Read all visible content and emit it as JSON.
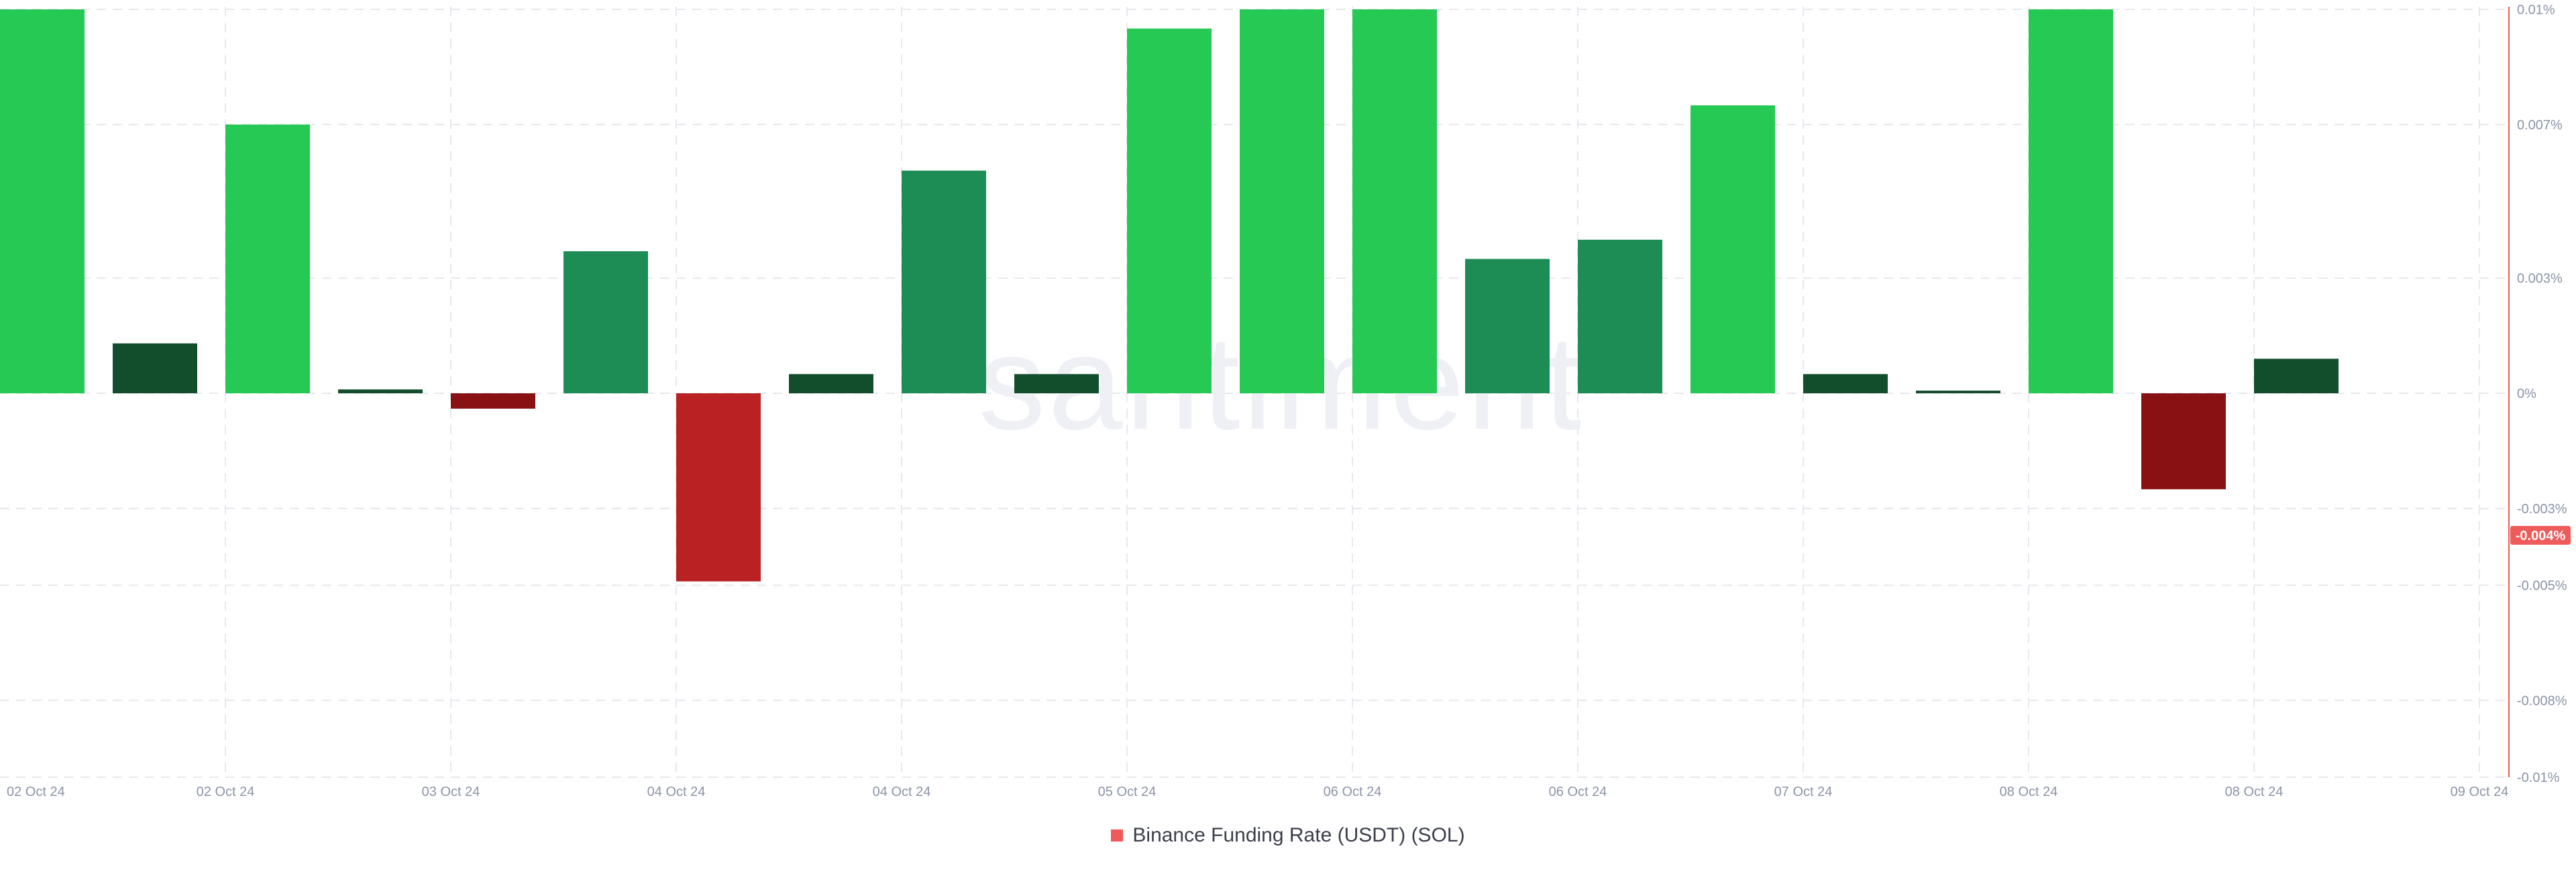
{
  "watermark": "santiment",
  "colors": {
    "bright_green": "#26c954",
    "mid_green": "#1d8c55",
    "dark_green": "#124d2c",
    "bright_red": "#b92123",
    "dark_red": "#8a1113",
    "axis_line": "#ef5a5a",
    "badge": "#ef5a5a",
    "legend_swatch": "#ef5a5a"
  },
  "chart_data": {
    "type": "bar",
    "title": "",
    "xlabel": "",
    "ylabel": "",
    "ylim": [
      -0.01,
      0.01
    ],
    "grid": true,
    "legend_placement": "bottom-center",
    "y_ticks": [
      {
        "value": 0.01,
        "label": "0.01%"
      },
      {
        "value": 0.007,
        "label": "0.007%"
      },
      {
        "value": 0.003,
        "label": "0.003%"
      },
      {
        "value": 0,
        "label": "0%"
      },
      {
        "value": -0.003,
        "label": "-0.003%"
      },
      {
        "value": -0.005,
        "label": "-0.005%"
      },
      {
        "value": -0.008,
        "label": "-0.008%"
      },
      {
        "value": -0.01,
        "label": "-0.01%"
      }
    ],
    "x_ticks": [
      "02 Oct 24",
      "02 Oct 24",
      "03 Oct 24",
      "04 Oct 24",
      "04 Oct 24",
      "05 Oct 24",
      "06 Oct 24",
      "06 Oct 24",
      "07 Oct 24",
      "08 Oct 24",
      "08 Oct 24",
      "09 Oct 24"
    ],
    "current_value_label": "-0.004%",
    "current_value": -0.0037,
    "series": [
      {
        "name": "Binance Funding Rate (USDT) (SOL)",
        "values": [
          0.01,
          0.0013,
          0.007,
          0.0001,
          -0.0004,
          0.0037,
          -0.0049,
          0.0005,
          0.0058,
          0.0005,
          0.0095,
          0.01,
          0.01,
          0.0035,
          0.004,
          0.0075,
          0.0005,
          5e-05,
          0.01,
          -0.0025,
          0.0009
        ],
        "colors": [
          "bright_green",
          "dark_green",
          "bright_green",
          "dark_green",
          "dark_red",
          "mid_green",
          "bright_red",
          "dark_green",
          "mid_green",
          "dark_green",
          "bright_green",
          "bright_green",
          "bright_green",
          "mid_green",
          "mid_green",
          "bright_green",
          "dark_green",
          "dark_green",
          "bright_green",
          "dark_red",
          "dark_green"
        ]
      }
    ]
  }
}
